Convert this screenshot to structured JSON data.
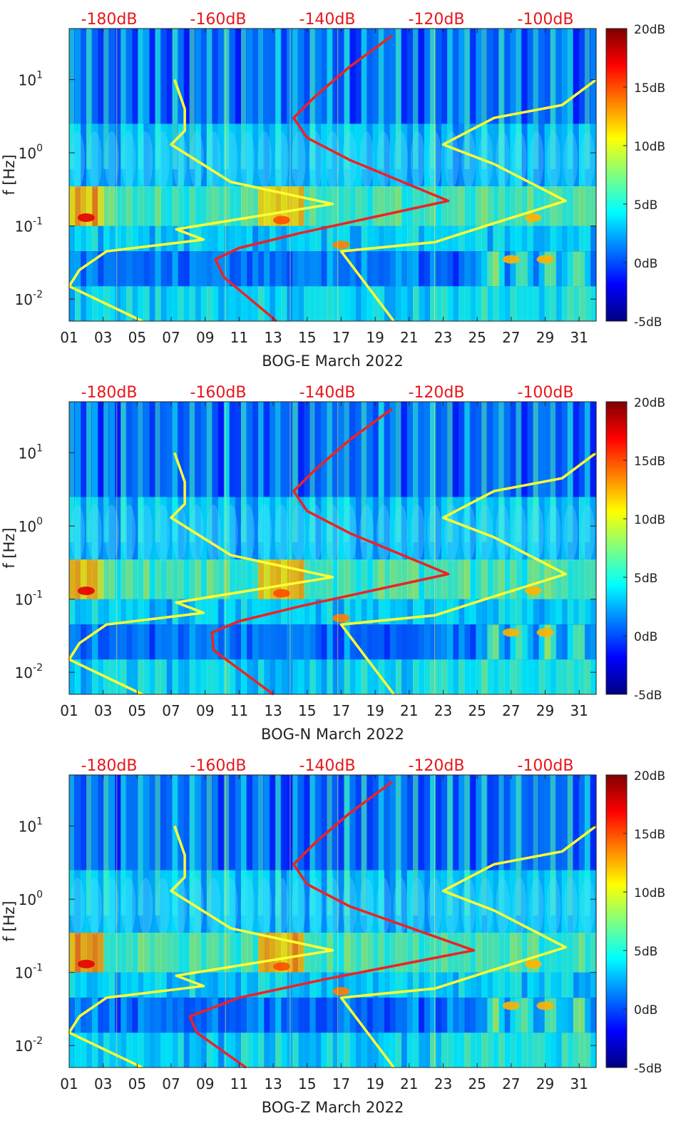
{
  "chart_data": [
    {
      "type": "heatmap",
      "xlabel": "BOG-E March 2022",
      "ylabel": "f [Hz]",
      "top_axis_labels": [
        "-180dB",
        "-160dB",
        "-140dB",
        "-120dB",
        "-100dB"
      ],
      "x_tick_labels": [
        "01",
        "03",
        "05",
        "07",
        "09",
        "11",
        "13",
        "15",
        "17",
        "19",
        "21",
        "23",
        "25",
        "27",
        "29",
        "31"
      ],
      "y_tick_labels": [
        "10^-2",
        "10^-1",
        "10^0",
        "10^1"
      ],
      "y_scale": "log",
      "ylim": [
        0.005,
        50
      ],
      "xlim_days": [
        1,
        32
      ],
      "colorbar": {
        "labels": [
          "20dB",
          "15dB",
          "10dB",
          "5dB",
          "0dB",
          "-5dB"
        ],
        "range": [
          -5,
          20
        ],
        "colormap": "jet"
      },
      "series": [
        {
          "color": "#ffff33",
          "curve": [
            [
              5.3,
              0.005
            ],
            [
              1.0,
              0.015
            ],
            [
              1.6,
              0.025
            ],
            [
              3.2,
              0.045
            ],
            [
              8.9,
              0.065
            ],
            [
              7.3,
              0.09
            ],
            [
              16.5,
              0.2
            ],
            [
              10.5,
              0.4
            ],
            [
              7,
              1.3
            ],
            [
              7.8,
              2
            ],
            [
              7.8,
              4
            ],
            [
              7.2,
              10
            ]
          ]
        },
        {
          "color": "#ee2222",
          "curve": [
            [
              13.2,
              0.005
            ],
            [
              10.1,
              0.02
            ],
            [
              9.6,
              0.035
            ],
            [
              11,
              0.05
            ],
            [
              14.6,
              0.08
            ],
            [
              23.3,
              0.22
            ],
            [
              17.5,
              0.8
            ],
            [
              15,
              1.6
            ],
            [
              14.2,
              3
            ],
            [
              15.5,
              6
            ],
            [
              17.5,
              15
            ],
            [
              20,
              40
            ]
          ]
        },
        {
          "color": "#ffff33",
          "curve": [
            [
              20.1,
              0.005
            ],
            [
              17,
              0.045
            ],
            [
              22.5,
              0.06
            ],
            [
              25.5,
              0.1
            ],
            [
              30.2,
              0.22
            ],
            [
              26,
              0.7
            ],
            [
              23,
              1.3
            ],
            [
              26,
              3
            ],
            [
              30,
              4.5
            ],
            [
              32,
              10
            ]
          ]
        }
      ]
    },
    {
      "type": "heatmap",
      "xlabel": "BOG-N March 2022",
      "ylabel": "f [Hz]",
      "top_axis_labels": [
        "-180dB",
        "-160dB",
        "-140dB",
        "-120dB",
        "-100dB"
      ],
      "x_tick_labels": [
        "01",
        "03",
        "05",
        "07",
        "09",
        "11",
        "13",
        "15",
        "17",
        "19",
        "21",
        "23",
        "25",
        "27",
        "29",
        "31"
      ],
      "y_tick_labels": [
        "10^-2",
        "10^-1",
        "10^0",
        "10^1"
      ],
      "y_scale": "log",
      "ylim": [
        0.005,
        50
      ],
      "xlim_days": [
        1,
        32
      ],
      "colorbar": {
        "labels": [
          "20dB",
          "15dB",
          "10dB",
          "5dB",
          "0dB",
          "-5dB"
        ],
        "range": [
          -5,
          20
        ],
        "colormap": "jet"
      },
      "series": [
        {
          "color": "#ffff33",
          "curve": [
            [
              5.3,
              0.005
            ],
            [
              1.0,
              0.015
            ],
            [
              1.6,
              0.025
            ],
            [
              3.2,
              0.045
            ],
            [
              8.9,
              0.065
            ],
            [
              7.3,
              0.09
            ],
            [
              16.5,
              0.2
            ],
            [
              10.5,
              0.4
            ],
            [
              7,
              1.3
            ],
            [
              7.8,
              2
            ],
            [
              7.8,
              4
            ],
            [
              7.2,
              10
            ]
          ]
        },
        {
          "color": "#ee2222",
          "curve": [
            [
              13,
              0.005
            ],
            [
              9.5,
              0.02
            ],
            [
              9.4,
              0.035
            ],
            [
              11,
              0.05
            ],
            [
              14.6,
              0.08
            ],
            [
              23.3,
              0.22
            ],
            [
              17.5,
              0.8
            ],
            [
              15,
              1.6
            ],
            [
              14.2,
              3
            ],
            [
              15.5,
              6
            ],
            [
              17.5,
              15
            ],
            [
              20,
              40
            ]
          ]
        },
        {
          "color": "#ffff33",
          "curve": [
            [
              20.1,
              0.005
            ],
            [
              17,
              0.045
            ],
            [
              22.5,
              0.06
            ],
            [
              25.5,
              0.1
            ],
            [
              30.2,
              0.22
            ],
            [
              26,
              0.7
            ],
            [
              23,
              1.3
            ],
            [
              26,
              3
            ],
            [
              30,
              4.5
            ],
            [
              32,
              10
            ]
          ]
        }
      ]
    },
    {
      "type": "heatmap",
      "xlabel": "BOG-Z March 2022",
      "ylabel": "f [Hz]",
      "top_axis_labels": [
        "-180dB",
        "-160dB",
        "-140dB",
        "-120dB",
        "-100dB"
      ],
      "x_tick_labels": [
        "01",
        "03",
        "05",
        "07",
        "09",
        "11",
        "13",
        "15",
        "17",
        "19",
        "21",
        "23",
        "25",
        "27",
        "29",
        "31"
      ],
      "y_tick_labels": [
        "10^-2",
        "10^-1",
        "10^0",
        "10^1"
      ],
      "y_scale": "log",
      "ylim": [
        0.005,
        50
      ],
      "xlim_days": [
        1,
        32
      ],
      "colorbar": {
        "labels": [
          "20dB",
          "15dB",
          "10dB",
          "5dB",
          "0dB",
          "-5dB"
        ],
        "range": [
          -5,
          20
        ],
        "colormap": "jet"
      },
      "series": [
        {
          "color": "#ffff33",
          "curve": [
            [
              5.3,
              0.005
            ],
            [
              1.0,
              0.015
            ],
            [
              1.6,
              0.025
            ],
            [
              3.2,
              0.045
            ],
            [
              8.9,
              0.065
            ],
            [
              7.3,
              0.09
            ],
            [
              16.5,
              0.2
            ],
            [
              10.5,
              0.4
            ],
            [
              7,
              1.3
            ],
            [
              7.8,
              2
            ],
            [
              7.8,
              4
            ],
            [
              7.2,
              10
            ]
          ]
        },
        {
          "color": "#ee2222",
          "curve": [
            [
              11.4,
              0.005
            ],
            [
              8.5,
              0.015
            ],
            [
              8.1,
              0.025
            ],
            [
              11,
              0.045
            ],
            [
              16,
              0.08
            ],
            [
              24.8,
              0.2
            ],
            [
              17.5,
              0.8
            ],
            [
              15,
              1.6
            ],
            [
              14.2,
              3
            ],
            [
              15.5,
              6
            ],
            [
              17.5,
              15
            ],
            [
              20,
              40
            ]
          ]
        },
        {
          "color": "#ffff33",
          "curve": [
            [
              20.1,
              0.005
            ],
            [
              17,
              0.045
            ],
            [
              22.5,
              0.06
            ],
            [
              25.5,
              0.1
            ],
            [
              30.2,
              0.22
            ],
            [
              26,
              0.7
            ],
            [
              23,
              1.3
            ],
            [
              26,
              3
            ],
            [
              30,
              4.5
            ],
            [
              32,
              10
            ]
          ]
        }
      ]
    }
  ]
}
